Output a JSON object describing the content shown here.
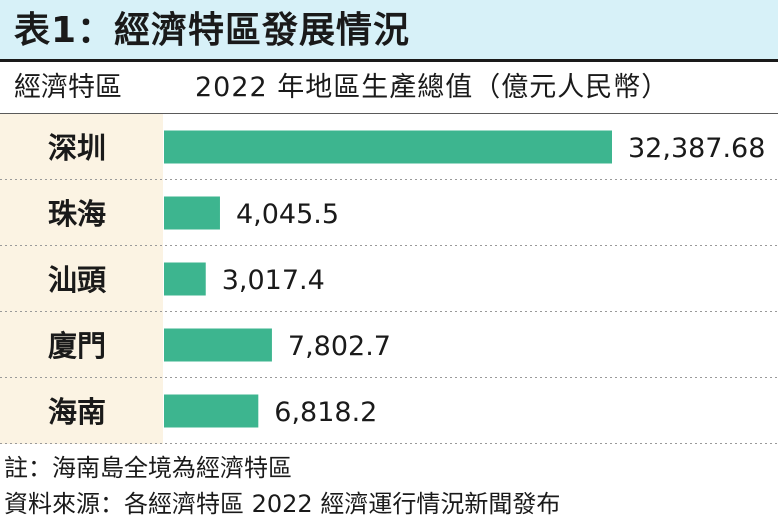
{
  "title": "表1：經濟特區發展情況",
  "header": {
    "category_label": "經濟特區",
    "value_label": "2022 年地區生產總值（億元人民幣）"
  },
  "chart_data": {
    "type": "bar",
    "orientation": "horizontal",
    "categories": [
      "深圳",
      "珠海",
      "汕頭",
      "廈門",
      "海南"
    ],
    "values": [
      32387.68,
      4045.5,
      3017.4,
      7802.7,
      6818.2
    ],
    "value_labels": [
      "32,387.68",
      "4,045.5",
      "3,017.4",
      "7,802.7",
      "6,818.2"
    ],
    "title": "表1：經濟特區發展情況",
    "xlabel": "2022 年地區生產總值（億元人民幣）",
    "ylabel": "經濟特區",
    "xlim": [
      0,
      32387.68
    ],
    "grid": false
  },
  "colors": {
    "bar": "#3db58f",
    "category_band": "#fbf3e3",
    "title_band": "#d7f1f8",
    "row_divider": "#9a9a9a"
  },
  "notes": [
    "註：海南島全境為經濟特區",
    "資料來源：各經濟特區 2022 經濟運行情況新聞發布"
  ]
}
